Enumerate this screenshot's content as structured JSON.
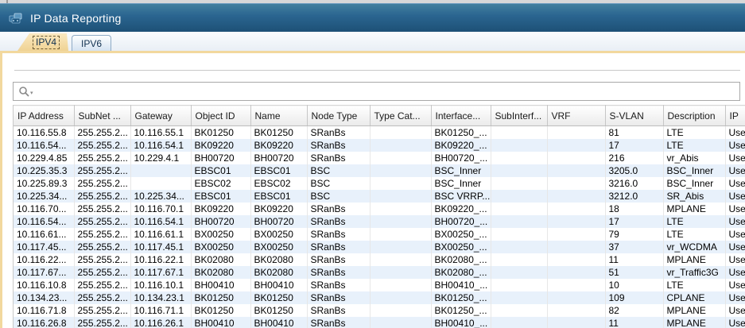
{
  "window": {
    "title": "IP Data Reporting"
  },
  "tabs": [
    {
      "label": "IPV4",
      "active": true
    },
    {
      "label": "IPV6",
      "active": false
    }
  ],
  "search": {
    "value": "",
    "placeholder": ""
  },
  "colors": {
    "titlebar": "#25608c",
    "active_tab": "#f2d89e",
    "row_stripe": "#e8f1fb",
    "header_bg": "#eeeeee"
  },
  "icons": {
    "app": "app-icon",
    "search": "magnifier-icon",
    "search_caret": "chevron-down-icon"
  },
  "table": {
    "columns": [
      "IP Address",
      "SubNet ...",
      "Gateway",
      "Object ID",
      "Name",
      "Node Type",
      "Type Cat...",
      "Interface...",
      "SubInterf...",
      "VRF",
      "S-VLAN",
      "Description",
      "IP"
    ],
    "rows": [
      [
        "10.116.55.8",
        "255.255.2...",
        "10.116.55.1",
        "BK01250",
        "BK01250",
        "SRanBs",
        "",
        "BK01250_...",
        "",
        "",
        "81",
        "LTE",
        "Used"
      ],
      [
        "10.116.54...",
        "255.255.2...",
        "10.116.54.1",
        "BK09220",
        "BK09220",
        "SRanBs",
        "",
        "BK09220_...",
        "",
        "",
        "17",
        "LTE",
        "Used"
      ],
      [
        "10.229.4.85",
        "255.255.2...",
        "10.229.4.1",
        "BH00720",
        "BH00720",
        "SRanBs",
        "",
        "BH00720_...",
        "",
        "",
        "216",
        "vr_Abis",
        "Used"
      ],
      [
        "10.225.35.3",
        "255.255.2...",
        "",
        "EBSC01",
        "EBSC01",
        "BSC",
        "",
        "BSC_Inner",
        "",
        "",
        "3205.0",
        "BSC_Inner",
        "Used"
      ],
      [
        "10.225.89.3",
        "255.255.2...",
        "",
        "EBSC02",
        "EBSC02",
        "BSC",
        "",
        "BSC_Inner",
        "",
        "",
        "3216.0",
        "BSC_Inner",
        "Used"
      ],
      [
        "10.225.34...",
        "255.255.2...",
        "10.225.34...",
        "EBSC01",
        "EBSC01",
        "BSC",
        "",
        "BSC VRRP...",
        "",
        "",
        "3212.0",
        "SR_Abis",
        "Used"
      ],
      [
        "10.116.70...",
        "255.255.2...",
        "10.116.70.1",
        "BK09220",
        "BK09220",
        "SRanBs",
        "",
        "BK09220_...",
        "",
        "",
        "18",
        "MPLANE",
        "Used"
      ],
      [
        "10.116.54...",
        "255.255.2...",
        "10.116.54.1",
        "BH00720",
        "BH00720",
        "SRanBs",
        "",
        "BH00720_...",
        "",
        "",
        "17",
        "LTE",
        "Used"
      ],
      [
        "10.116.61...",
        "255.255.2...",
        "10.116.61.1",
        "BX00250",
        "BX00250",
        "SRanBs",
        "",
        "BX00250_...",
        "",
        "",
        "79",
        "LTE",
        "Used"
      ],
      [
        "10.117.45...",
        "255.255.2...",
        "10.117.45.1",
        "BX00250",
        "BX00250",
        "SRanBs",
        "",
        "BX00250_...",
        "",
        "",
        "37",
        "vr_WCDMA",
        "Used"
      ],
      [
        "10.116.22...",
        "255.255.2...",
        "10.116.22.1",
        "BK02080",
        "BK02080",
        "SRanBs",
        "",
        "BK02080_...",
        "",
        "",
        "11",
        "MPLANE",
        "Used"
      ],
      [
        "10.117.67...",
        "255.255.2...",
        "10.117.67.1",
        "BK02080",
        "BK02080",
        "SRanBs",
        "",
        "BK02080_...",
        "",
        "",
        "51",
        "vr_Traffic3G",
        "Used"
      ],
      [
        "10.116.10.8",
        "255.255.2...",
        "10.116.10.1",
        "BH00410",
        "BH00410",
        "SRanBs",
        "",
        "BH00410_...",
        "",
        "",
        "10",
        "LTE",
        "Used"
      ],
      [
        "10.134.23...",
        "255.255.2...",
        "10.134.23.1",
        "BK01250",
        "BK01250",
        "SRanBs",
        "",
        "BK01250_...",
        "",
        "",
        "109",
        "CPLANE",
        "Used"
      ],
      [
        "10.116.71.8",
        "255.255.2...",
        "10.116.71.1",
        "BK01250",
        "BK01250",
        "SRanBs",
        "",
        "BK01250_...",
        "",
        "",
        "82",
        "MPLANE",
        "Used"
      ],
      [
        "10.116.26.8",
        "255.255.2...",
        "10.116.26.1",
        "BH00410",
        "BH00410",
        "SRanBs",
        "",
        "BH00410_...",
        "",
        "",
        "11",
        "MPLANE",
        "Used"
      ]
    ]
  }
}
